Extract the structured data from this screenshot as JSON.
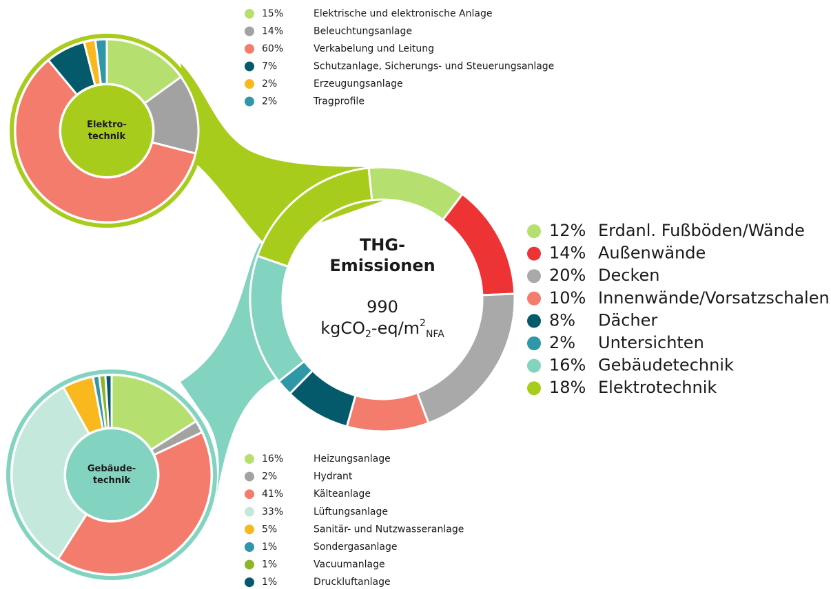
{
  "chart_data": [
    {
      "type": "pie",
      "center_label": [
        "THG-",
        "Emissionen"
      ],
      "total": 990,
      "unit": [
        "kgCO",
        "2",
        "-eq/m",
        "2",
        "NFA"
      ],
      "categories": [
        "Erdanl. Fußböden/Wände",
        "Außenwände",
        "Decken",
        "Innenwände/Vorsatzschalen",
        "Dächer",
        "Untersichten",
        "Gebäudetechnik",
        "Elektrotechnik"
      ],
      "values": [
        12,
        14,
        20,
        10,
        8,
        2,
        16,
        18
      ],
      "value_labels": [
        "12%",
        "14%",
        "20%",
        "10%",
        "8%",
        "2%",
        "16%",
        "18%"
      ],
      "colors": [
        "#b5e06f",
        "#ee3335",
        "#a9a9a9",
        "#f47c6c",
        "#045a6a",
        "#2e97a8",
        "#82d3c0",
        "#a7cc1c"
      ]
    },
    {
      "type": "pie",
      "center_label": [
        "Elektro-",
        "technik"
      ],
      "categories": [
        "Elektrische und elektronische Anlage",
        "Beleuchtungsanlage",
        "Verkabelung und Leitung",
        "Schutzanlage, Sicherungs- und Steuerungsanlage",
        "Erzeugungsanlage",
        "Tragprofile"
      ],
      "values": [
        15,
        14,
        60,
        7,
        2,
        2
      ],
      "value_labels": [
        "15%",
        "14%",
        "60%",
        "7%",
        "2%",
        "2%"
      ],
      "colors": [
        "#b5e06f",
        "#a2a2a2",
        "#f47c6c",
        "#045a6a",
        "#f8b81e",
        "#2e97a8"
      ],
      "center_color": "#a7cc1c"
    },
    {
      "type": "pie",
      "center_label": [
        "Gebäude-",
        "technik"
      ],
      "categories": [
        "Heizungsanlage",
        "Hydrant",
        "Kälteanlage",
        "Lüftungsanlage",
        "Sanitär- und Nutzwasseranlage",
        "Sondergasanlage",
        "Vacuumanlage",
        "Druckluftanlage"
      ],
      "values": [
        16,
        2,
        41,
        33,
        5,
        1,
        1,
        1
      ],
      "value_labels": [
        "16%",
        "2%",
        "41%",
        "33%",
        "5%",
        "1%",
        "1%",
        "1%"
      ],
      "colors": [
        "#b5e06f",
        "#a2a2a2",
        "#f47c6c",
        "#c5e8dc",
        "#f8b81e",
        "#2e97a8",
        "#8db529",
        "#045a6a"
      ],
      "center_color": "#82d3c0"
    }
  ]
}
